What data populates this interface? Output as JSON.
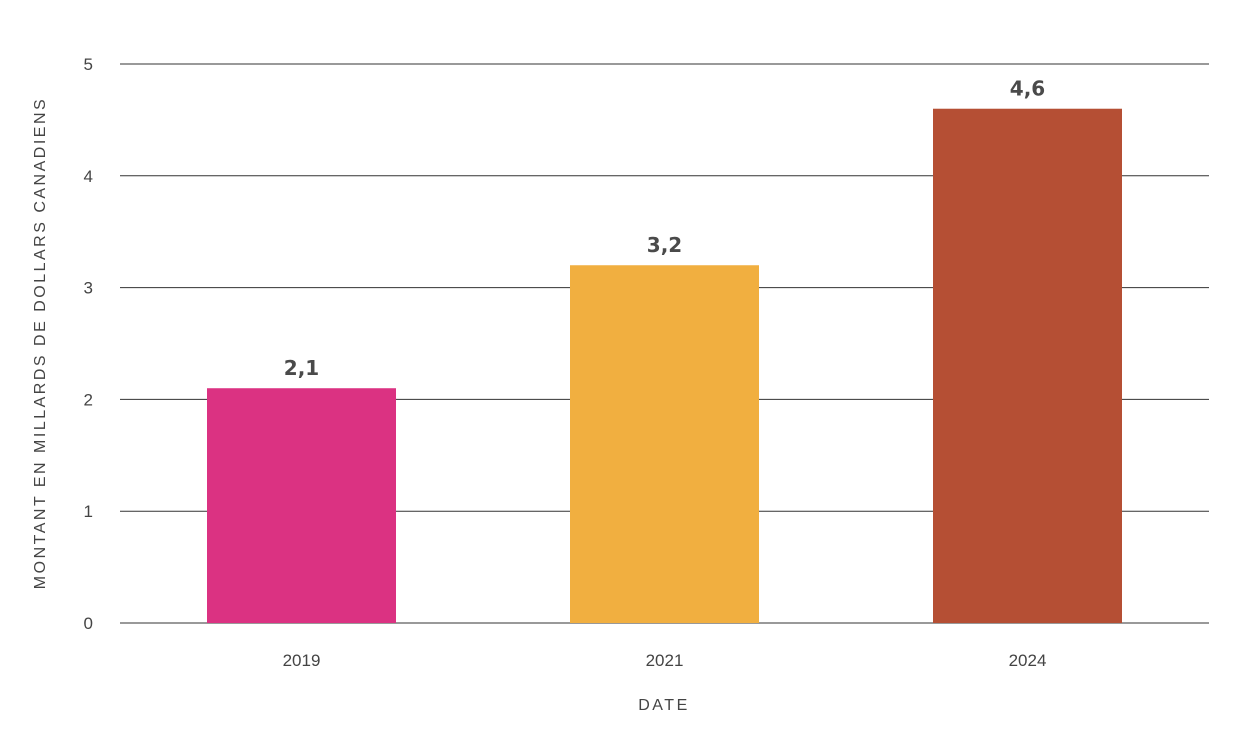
{
  "chart_data": {
    "type": "bar",
    "categories": [
      "2019",
      "2021",
      "2024"
    ],
    "values": [
      2.1,
      3.2,
      4.6
    ],
    "data_labels": [
      "2,1",
      "3,2",
      "4,6"
    ],
    "colors": [
      "#db3282",
      "#f1af40",
      "#b54f34"
    ],
    "xlabel": "DATE",
    "ylabel": "MONTANT EN MILLARDS DE DOLLARS CANADIENS",
    "ylim": [
      0,
      5
    ],
    "yticks": [
      "0",
      "1",
      "2",
      "3",
      "4",
      "5"
    ],
    "grid": true,
    "legend": "none"
  }
}
